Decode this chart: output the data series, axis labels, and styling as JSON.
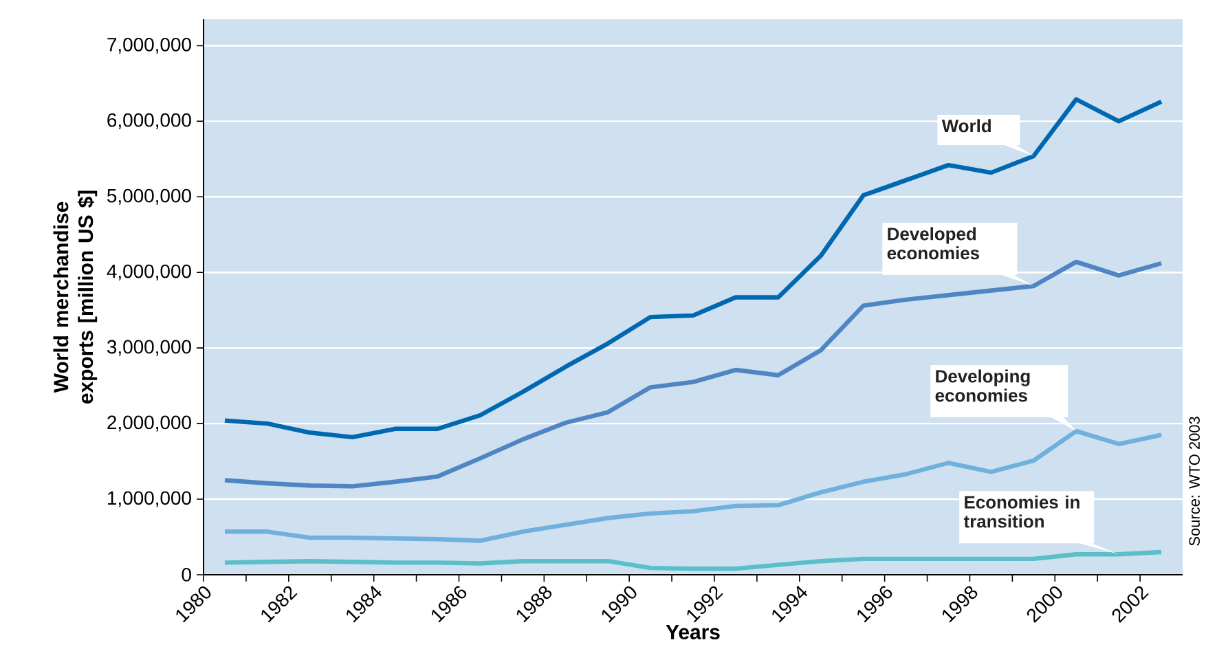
{
  "chart_data": {
    "type": "line",
    "xlabel": "Years",
    "ylabel": "World merchandise exports [million US $]",
    "x": [
      1980.5,
      1981.5,
      1982.5,
      1983.5,
      1984.5,
      1985.5,
      1986.5,
      1987.5,
      1988.5,
      1989.5,
      1990.5,
      1991.5,
      1992.5,
      1993.5,
      1994.5,
      1995.5,
      1996.5,
      1997.5,
      1998.5,
      1999.5,
      2000.5,
      2001.5,
      2002.5
    ],
    "series": [
      {
        "name": "World",
        "color": "#0068b0",
        "values": [
          2040000,
          2000000,
          1880000,
          1820000,
          1930000,
          1930000,
          2110000,
          2420000,
          2750000,
          3060000,
          3410000,
          3430000,
          3670000,
          3670000,
          4220000,
          5020000,
          5220000,
          5420000,
          5320000,
          5540000,
          6290000,
          6000000,
          6260000
        ]
      },
      {
        "name": "Developed economies",
        "color": "#4f85c2",
        "values": [
          1250000,
          1210000,
          1180000,
          1170000,
          1230000,
          1300000,
          1540000,
          1790000,
          2010000,
          2150000,
          2480000,
          2550000,
          2710000,
          2640000,
          2970000,
          3560000,
          3640000,
          3700000,
          3760000,
          3820000,
          4140000,
          3960000,
          4120000
        ]
      },
      {
        "name": "Developing economies",
        "color": "#70b0dd",
        "values": [
          570000,
          570000,
          490000,
          490000,
          480000,
          470000,
          450000,
          570000,
          660000,
          750000,
          810000,
          840000,
          910000,
          920000,
          1090000,
          1230000,
          1330000,
          1480000,
          1360000,
          1510000,
          1900000,
          1730000,
          1850000
        ]
      },
      {
        "name": "Economies in transition",
        "color": "#5bbfc8",
        "values": [
          160000,
          170000,
          180000,
          170000,
          160000,
          160000,
          150000,
          180000,
          180000,
          180000,
          90000,
          80000,
          80000,
          130000,
          180000,
          210000,
          210000,
          210000,
          210000,
          210000,
          270000,
          270000,
          300000
        ]
      }
    ],
    "xlim": [
      1980,
      2003
    ],
    "ylim": [
      0,
      7350000
    ],
    "xticks": [
      1980,
      {
        "value": 1981,
        "label": null
      },
      1982,
      {
        "value": 1983,
        "label": null
      },
      1984,
      {
        "value": 1985,
        "label": null
      },
      1986,
      {
        "value": 1987,
        "label": null
      },
      1988,
      {
        "value": 1989,
        "label": null
      },
      1990,
      {
        "value": 1991,
        "label": null
      },
      1992,
      {
        "value": 1993,
        "label": null
      },
      1994,
      {
        "value": 1995,
        "label": null
      },
      1996,
      {
        "value": 1997,
        "label": null
      },
      1998,
      {
        "value": 1999,
        "label": null
      },
      2000,
      {
        "value": 2001,
        "label": null
      },
      2002
    ],
    "yticks": [
      0,
      {
        "value": 1000000,
        "label": "1,000,000"
      },
      {
        "value": 2000000,
        "label": "2,000,000"
      },
      {
        "value": 3000000,
        "label": "3,000,000"
      },
      {
        "value": 4000000,
        "label": "4,000,000"
      },
      {
        "value": 5000000,
        "label": "5,000,000"
      },
      {
        "value": 6000000,
        "label": "6,000,000"
      },
      {
        "value": 7000000,
        "label": "7,000,000"
      }
    ],
    "grid": "y",
    "marker": "none",
    "line_style": "solid",
    "annotations": [
      "Source: WTO 2003"
    ]
  }
}
